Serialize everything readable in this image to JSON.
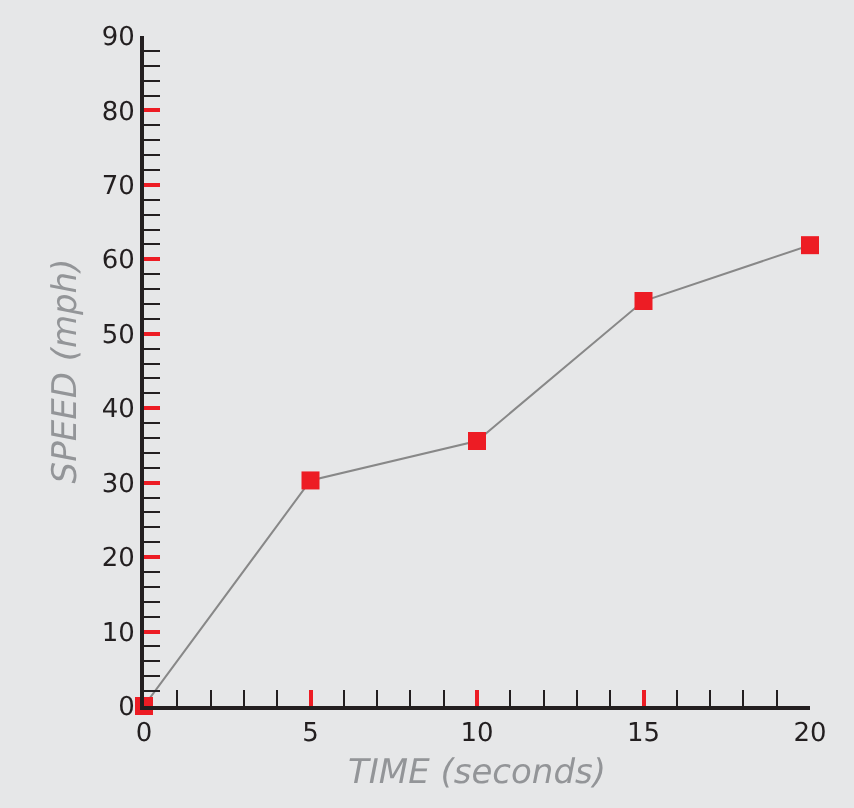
{
  "chart_data": {
    "type": "line",
    "xlabel": "TIME (seconds)",
    "ylabel": "SPEED (mph)",
    "x": [
      0,
      5,
      10,
      15,
      20
    ],
    "series": [
      {
        "color": "#ed1c24",
        "values": [
          0,
          30.3,
          35.6,
          54.4,
          61.9
        ]
      }
    ],
    "xlim": [
      0,
      20
    ],
    "xticks": [
      0,
      5,
      10,
      15,
      20
    ],
    "ylim": [
      0,
      90
    ],
    "yticks": [
      0,
      10,
      20,
      30,
      40,
      50,
      60,
      70,
      80,
      90
    ],
    "grid": false,
    "legend": false,
    "marker": "square",
    "line_style": "solid"
  }
}
